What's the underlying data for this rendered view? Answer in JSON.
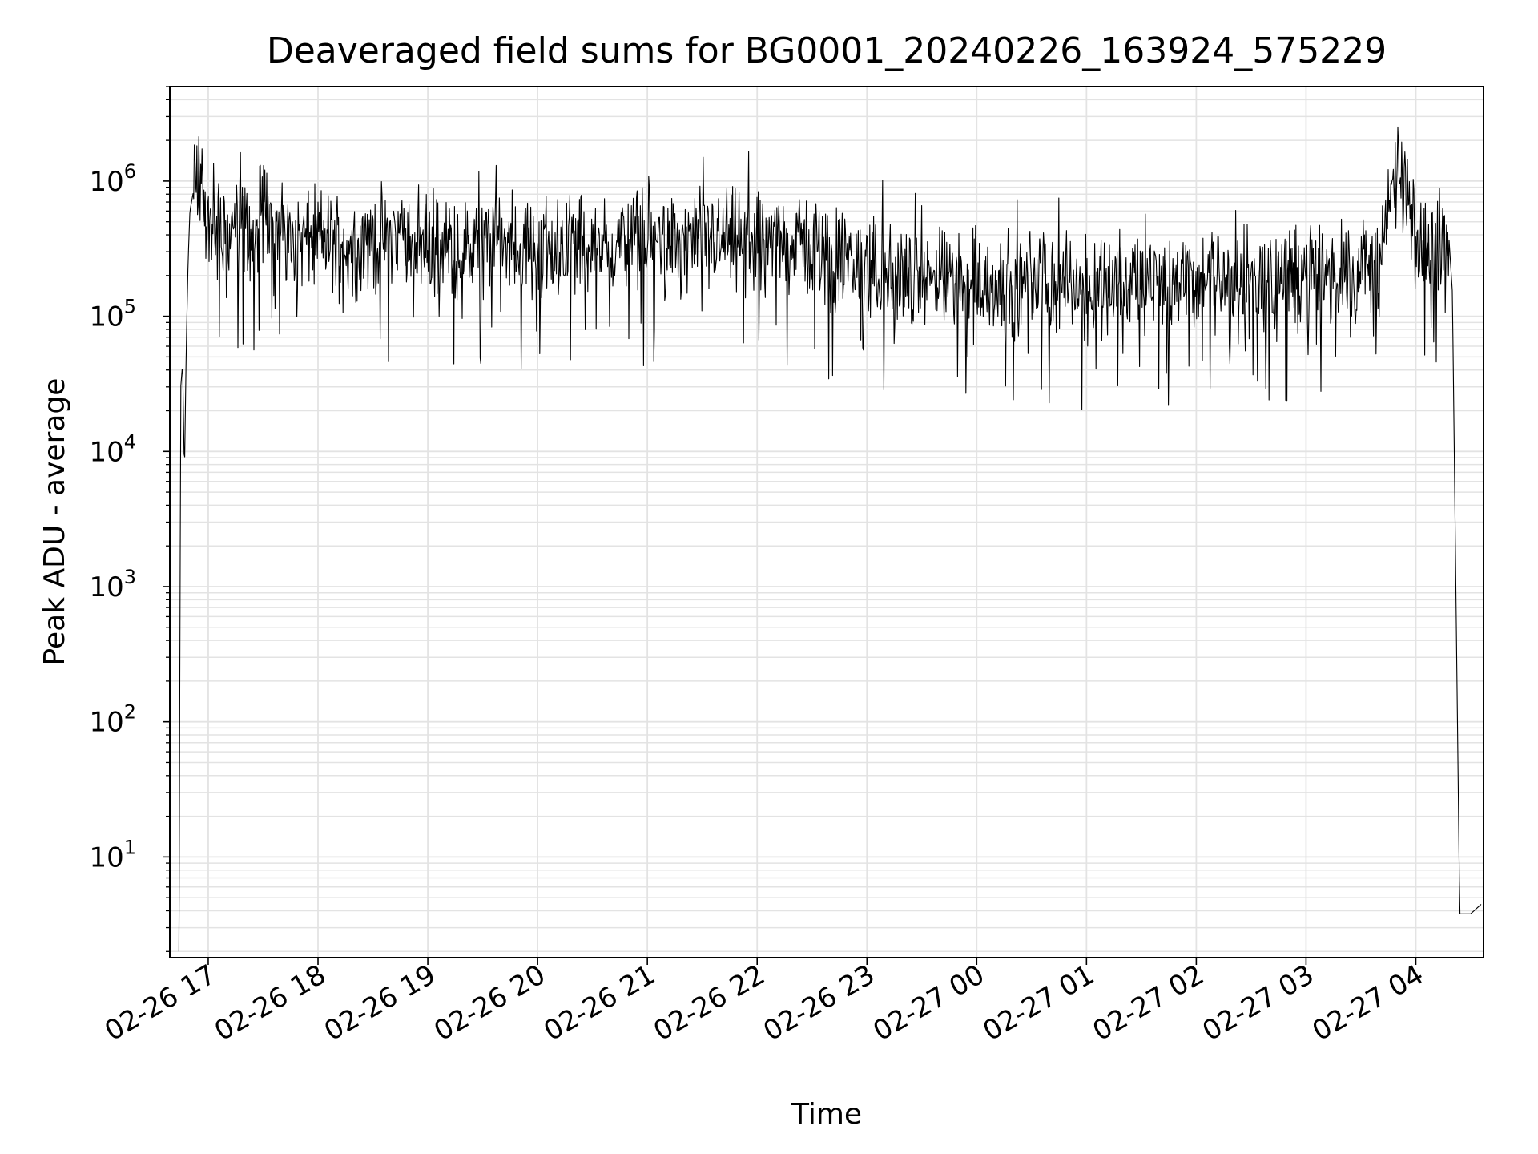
{
  "chart_data": {
    "type": "line",
    "title": "Deaveraged field sums for BG0001_20240226_163924_575229",
    "xlabel": "Time",
    "ylabel": "Peak ADU - average",
    "yscale": "log",
    "ylim": [
      1.8,
      5000000
    ],
    "xlim": [
      "2024-02-26 16:39",
      "2024-02-27 04:37"
    ],
    "grid": true,
    "line_color": "#000000",
    "grid_color": "#e3e3e3",
    "x_ticks": [
      {
        "value": "2024-02-26 17:00",
        "label": "02-26 17"
      },
      {
        "value": "2024-02-26 18:00",
        "label": "02-26 18"
      },
      {
        "value": "2024-02-26 19:00",
        "label": "02-26 19"
      },
      {
        "value": "2024-02-26 20:00",
        "label": "02-26 20"
      },
      {
        "value": "2024-02-26 21:00",
        "label": "02-26 21"
      },
      {
        "value": "2024-02-26 22:00",
        "label": "02-26 22"
      },
      {
        "value": "2024-02-26 23:00",
        "label": "02-26 23"
      },
      {
        "value": "2024-02-27 00:00",
        "label": "02-27 00"
      },
      {
        "value": "2024-02-27 01:00",
        "label": "02-27 01"
      },
      {
        "value": "2024-02-27 02:00",
        "label": "02-27 02"
      },
      {
        "value": "2024-02-27 03:00",
        "label": "02-27 03"
      },
      {
        "value": "2024-02-27 04:00",
        "label": "02-27 04"
      }
    ],
    "y_ticks": [
      {
        "value": 10,
        "base": "10",
        "exp": "1"
      },
      {
        "value": 100,
        "base": "10",
        "exp": "2"
      },
      {
        "value": 1000,
        "base": "10",
        "exp": "3"
      },
      {
        "value": 10000,
        "base": "10",
        "exp": "4"
      },
      {
        "value": 100000,
        "base": "10",
        "exp": "5"
      },
      {
        "value": 1000000,
        "base": "10",
        "exp": "6"
      }
    ],
    "series": [
      {
        "x": [
          "2024-02-26 16:44",
          "2024-02-26 16:45",
          "2024-02-26 16:46",
          "2024-02-26 16:47",
          "2024-02-26 16:48",
          "2024-02-26 16:49",
          "2024-02-26 16:50",
          "2024-02-26 16:52",
          "2024-02-26 16:54",
          "2024-02-26 16:56",
          "2024-02-26 16:58",
          "2024-02-26 17:00",
          "2024-02-26 17:05",
          "2024-02-26 17:10",
          "2024-02-26 17:15",
          "2024-02-26 17:20",
          "2024-02-26 17:25",
          "2024-02-26 17:30",
          "2024-02-26 17:40",
          "2024-02-26 17:50",
          "2024-02-26 18:00",
          "2024-02-26 18:20",
          "2024-02-26 18:40",
          "2024-02-26 19:00",
          "2024-02-26 19:20",
          "2024-02-26 19:40",
          "2024-02-26 20:00",
          "2024-02-26 20:20",
          "2024-02-26 20:40",
          "2024-02-26 21:00",
          "2024-02-26 21:20",
          "2024-02-26 21:40",
          "2024-02-26 22:00",
          "2024-02-26 22:20",
          "2024-02-26 22:40",
          "2024-02-26 23:00",
          "2024-02-26 23:20",
          "2024-02-26 23:40",
          "2024-02-27 00:00",
          "2024-02-27 00:20",
          "2024-02-27 00:40",
          "2024-02-27 01:00",
          "2024-02-27 01:20",
          "2024-02-27 01:40",
          "2024-02-27 02:00",
          "2024-02-27 02:20",
          "2024-02-27 02:40",
          "2024-02-27 03:00",
          "2024-02-27 03:20",
          "2024-02-27 03:40",
          "2024-02-27 03:50",
          "2024-02-27 03:55",
          "2024-02-27 04:00",
          "2024-02-27 04:05",
          "2024-02-27 04:10",
          "2024-02-27 04:15",
          "2024-02-27 04:18",
          "2024-02-27 04:20",
          "2024-02-27 04:24",
          "2024-02-27 04:30",
          "2024-02-27 04:36"
        ],
        "y": [
          2,
          30000,
          45000,
          6500,
          60000,
          250000,
          600000,
          850000,
          950000,
          900000,
          700000,
          450000,
          400000,
          350000,
          500000,
          420000,
          380000,
          700000,
          450000,
          350000,
          380000,
          320000,
          400000,
          350000,
          300000,
          360000,
          320000,
          350000,
          330000,
          380000,
          350000,
          360000,
          340000,
          360000,
          280000,
          220000,
          200000,
          190000,
          180000,
          170000,
          175000,
          180000,
          175000,
          170000,
          180000,
          190000,
          185000,
          200000,
          210000,
          250000,
          1200000,
          800000,
          300000,
          320000,
          350000,
          450000,
          400000,
          150000,
          3.8,
          3.8,
          4.5
        ]
      }
    ]
  }
}
